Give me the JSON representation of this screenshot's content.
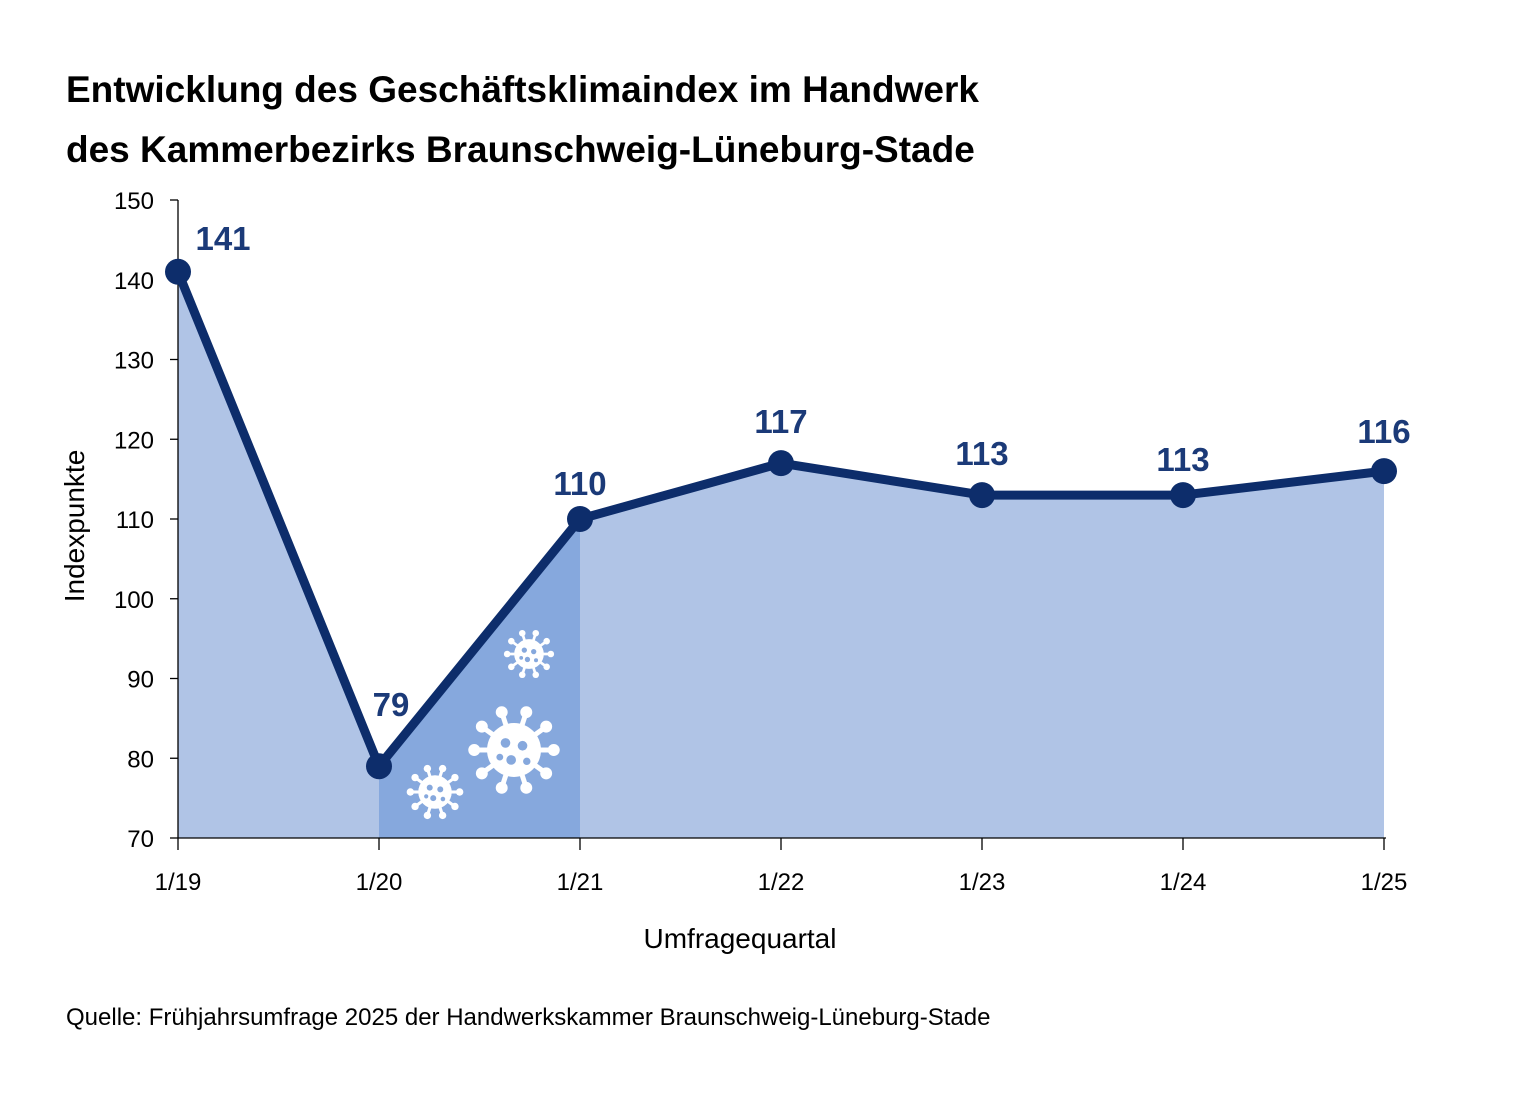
{
  "header": {
    "title_line1": "Entwicklung des Geschäftsklimaindex im Handwerk",
    "title_line2": "des Kammerbezirks Braunschweig-Lüneburg-Stade"
  },
  "footer": {
    "source": "Quelle: Frühjahrsumfrage 2025 der Handwerkskammer Braunschweig-Lüneburg-Stade"
  },
  "colors": {
    "line": "#0d2d6b",
    "area": "#b0c4e6",
    "area_highlight": "#86a8dd",
    "label": "#1b3a78",
    "axis": "#000000",
    "icon": "#ffffff"
  },
  "chart_data": {
    "type": "area",
    "title": "Entwicklung des Geschäftsklimaindex im Handwerk des Kammerbezirks Braunschweig-Lüneburg-Stade",
    "xlabel": "Umfragequartal",
    "ylabel": "Indexpunkte",
    "categories": [
      "1/19",
      "1/20",
      "1/21",
      "1/22",
      "1/23",
      "1/24",
      "1/25"
    ],
    "values": [
      141,
      79,
      110,
      117,
      113,
      113,
      116
    ],
    "value_labels": [
      "141",
      "79",
      "110",
      "117",
      "113",
      "113",
      "116"
    ],
    "ylim": [
      70,
      150
    ],
    "yticks": [
      70,
      80,
      90,
      100,
      110,
      120,
      130,
      140,
      150
    ],
    "grid": false,
    "highlight_range": [
      "1/20",
      "1/21"
    ],
    "highlight_icons": [
      "virus-icon",
      "virus-icon",
      "virus-icon"
    ]
  }
}
